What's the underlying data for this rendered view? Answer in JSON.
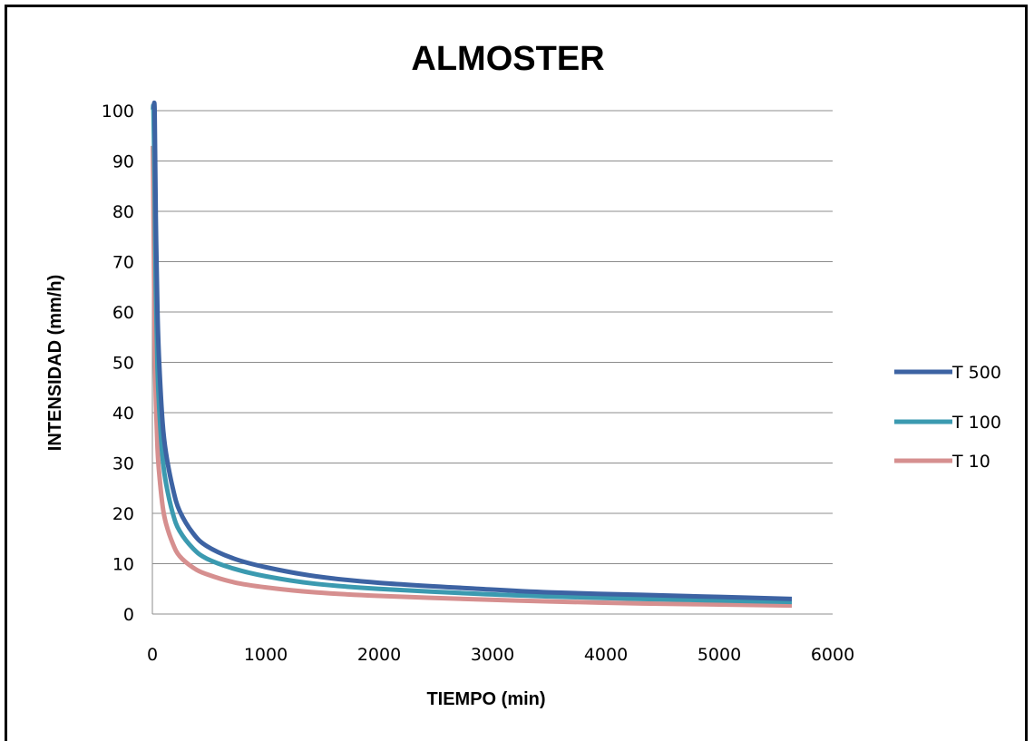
{
  "chart_data": {
    "type": "line",
    "title": "ALMOSTER",
    "xlabel": "TIEMPO (min)",
    "ylabel": "INTENSIDAD (mm/h)",
    "xlim": [
      0,
      6000
    ],
    "ylim": [
      0,
      100
    ],
    "xticks": [
      "0",
      "1000",
      "2000",
      "3000",
      "4000",
      "5000",
      "6000"
    ],
    "yticks": [
      "0",
      "10",
      "20",
      "30",
      "40",
      "50",
      "60",
      "70",
      "80",
      "90",
      "100"
    ],
    "grid": "horizontal",
    "legend_position": "right",
    "x": [
      5,
      10,
      20,
      30,
      45,
      60,
      90,
      120,
      180,
      240,
      360,
      480,
      720,
      1000,
      1440,
      2000,
      2880,
      3500,
      4320,
      5000,
      5640
    ],
    "series": [
      {
        "name": "T 500",
        "color": "#3d63a3",
        "values": [
          100,
          100,
          100,
          79,
          60,
          50,
          38,
          32,
          25,
          20.5,
          16,
          13.5,
          11,
          9.3,
          7.5,
          6.2,
          5.0,
          4.3,
          3.8,
          3.4,
          3.0
        ]
      },
      {
        "name": "T 100",
        "color": "#3b9ab0",
        "values": [
          100,
          100,
          86,
          65,
          49,
          41,
          31,
          26,
          20,
          16.5,
          13,
          11,
          9,
          7.5,
          6.0,
          5.0,
          4.0,
          3.5,
          3.0,
          2.7,
          2.4
        ]
      },
      {
        "name": "T 10",
        "color": "#d68f8f",
        "values": [
          93,
          80,
          55,
          43,
          33,
          28,
          21.5,
          18,
          14,
          11.5,
          9.2,
          7.9,
          6.3,
          5.3,
          4.3,
          3.6,
          2.9,
          2.5,
          2.1,
          1.9,
          1.7
        ]
      }
    ]
  }
}
